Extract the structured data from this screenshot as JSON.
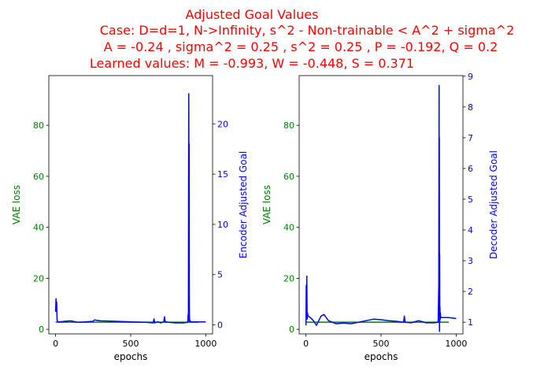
{
  "title_lines": [
    "Adjusted Goal Values",
    "Case: D=d=1, N->Infinity, s^2 - Non-trainable < A^2 + sigma^2",
    "A = -0.24 , sigma^2 = 0.25 , s^2 = 0.25 , P = -0.192, Q = 0.2",
    "Learned values: M = -0.993, W = -0.448, S = 0.371"
  ],
  "title_color": "#ff0000",
  "colors": {
    "vae": "#008000",
    "goal": "#0000ff",
    "axis": "#000000"
  },
  "chart_data": [
    {
      "type": "line",
      "xlabel": "epochs",
      "ylabel_left": "VAE loss",
      "ylabel_right": "Encoder Adjusted Goal",
      "xlim": [
        -45,
        1045
      ],
      "ylim_left": [
        -1.8,
        99.5
      ],
      "ylim_right": [
        -0.9,
        24.8
      ],
      "x_ticks": [
        0,
        500,
        1000
      ],
      "y_ticks_left": [
        0,
        20,
        40,
        60,
        80
      ],
      "y_ticks_right": [
        0,
        5,
        10,
        15,
        20
      ],
      "series": [
        {
          "axis": "left",
          "color": "#008000",
          "x": [
            0,
            5,
            10,
            100,
            300,
            500,
            700,
            885,
            890,
            900,
            950
          ],
          "y": [
            3.0,
            2.9,
            2.8,
            2.8,
            2.8,
            2.8,
            2.8,
            2.8,
            2.8,
            2.8,
            2.8
          ]
        },
        {
          "axis": "right",
          "color": "#0000ff",
          "x": [
            0,
            3,
            5,
            7,
            10,
            15,
            30,
            60,
            100,
            150,
            200,
            250,
            260,
            270,
            300,
            400,
            500,
            600,
            650,
            655,
            660,
            680,
            700,
            720,
            725,
            730,
            750,
            800,
            850,
            880,
            882,
            884,
            886,
            887,
            888,
            889,
            890,
            891,
            892,
            893,
            894,
            895,
            896,
            898,
            900,
            950,
            1000
          ],
          "y": [
            1.3,
            2.6,
            1.5,
            2.3,
            0.5,
            0.3,
            0.3,
            0.35,
            0.4,
            0.25,
            0.3,
            0.35,
            0.5,
            0.45,
            0.4,
            0.35,
            0.3,
            0.25,
            0.2,
            0.6,
            0.2,
            0.3,
            0.2,
            0.3,
            0.8,
            0.3,
            0.25,
            0.2,
            0.2,
            0.25,
            1.0,
            0.4,
            23.0,
            22.0,
            10.0,
            18.0,
            3.0,
            1.0,
            0.5,
            0.3,
            0.4,
            0.3,
            0.4,
            0.3,
            0.3,
            0.3,
            0.3
          ]
        }
      ]
    },
    {
      "type": "line",
      "xlabel": "epochs",
      "ylabel_left": "VAE loss",
      "ylabel_right": "Decoder Adjusted Goal",
      "xlim": [
        -45,
        1045
      ],
      "ylim_left": [
        -1.8,
        99.5
      ],
      "ylim_right": [
        0.62,
        9.02
      ],
      "x_ticks": [
        0,
        500,
        1000
      ],
      "y_ticks_left": [
        0,
        20,
        40,
        60,
        80
      ],
      "y_ticks_right": [
        1,
        2,
        3,
        4,
        5,
        6,
        7,
        8,
        9
      ],
      "series": [
        {
          "axis": "left",
          "color": "#008000",
          "x": [
            0,
            5,
            10,
            100,
            300,
            500,
            700,
            885,
            890,
            900,
            950
          ],
          "y": [
            3.0,
            2.9,
            2.8,
            2.8,
            2.8,
            2.8,
            2.8,
            2.8,
            2.8,
            2.8,
            2.8
          ]
        },
        {
          "axis": "right",
          "color": "#0000ff",
          "x": [
            0,
            2,
            4,
            6,
            8,
            10,
            15,
            30,
            50,
            70,
            80,
            100,
            120,
            150,
            200,
            250,
            300,
            350,
            400,
            450,
            500,
            550,
            600,
            650,
            655,
            660,
            700,
            750,
            800,
            850,
            880,
            884,
            886,
            887,
            888,
            889,
            890,
            891,
            892,
            893,
            894,
            895,
            896,
            898,
            900,
            950,
            1000
          ],
          "y": [
            0.9,
            2.2,
            1.6,
            2.5,
            1.1,
            1.3,
            1.2,
            1.15,
            1.05,
            0.9,
            1.0,
            1.2,
            1.25,
            1.05,
            0.95,
            0.97,
            0.95,
            1.0,
            1.05,
            1.1,
            1.08,
            1.05,
            1.03,
            1.0,
            1.2,
            1.0,
            0.98,
            1.05,
            0.98,
            0.98,
            1.0,
            2.2,
            8.7,
            5.0,
            7.0,
            0.7,
            3.2,
            1.0,
            1.5,
            1.2,
            1.1,
            1.3,
            1.2,
            1.15,
            1.15,
            1.15,
            1.12
          ]
        }
      ]
    }
  ]
}
